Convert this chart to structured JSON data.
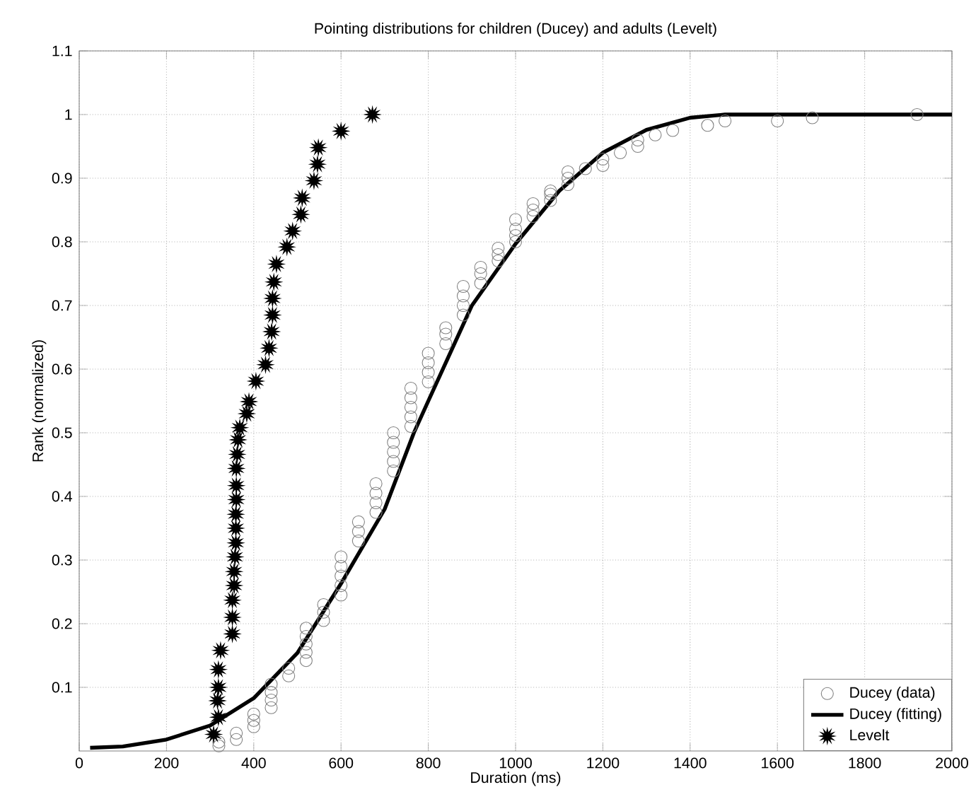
{
  "chart_data": {
    "type": "scatter",
    "title": "Pointing distributions for children (Ducey) and adults (Levelt)",
    "xlabel": "Duration (ms)",
    "ylabel": "Rank (normalized)",
    "xlim": [
      0,
      2000
    ],
    "ylim": [
      0,
      1.1
    ],
    "xticks": [
      0,
      200,
      400,
      600,
      800,
      1000,
      1200,
      1400,
      1600,
      1800,
      2000
    ],
    "yticks": [
      0.1,
      0.2,
      0.3,
      0.4,
      0.5,
      0.6,
      0.7,
      0.8,
      0.9,
      1,
      1.1
    ],
    "grid": true,
    "legend": "bottom right",
    "series": [
      {
        "name": "Ducey (data)",
        "marker": "circle",
        "color": "#808080",
        "x": [
          320,
          320,
          360,
          360,
          400,
          400,
          400,
          440,
          440,
          440,
          440,
          480,
          480,
          520,
          520,
          520,
          520,
          520,
          560,
          560,
          560,
          600,
          600,
          600,
          600,
          600,
          640,
          640,
          640,
          680,
          680,
          680,
          680,
          720,
          720,
          720,
          720,
          720,
          760,
          760,
          760,
          760,
          760,
          800,
          800,
          800,
          800,
          840,
          840,
          840,
          880,
          880,
          880,
          880,
          920,
          920,
          920,
          960,
          960,
          960,
          1000,
          1000,
          1000,
          1000,
          1040,
          1040,
          1040,
          1080,
          1080,
          1080,
          1120,
          1120,
          1120,
          1160,
          1200,
          1200,
          1240,
          1280,
          1280,
          1320,
          1360,
          1440,
          1480,
          1600,
          1680,
          1920
        ],
        "values": [
          0.008,
          0.014,
          0.018,
          0.028,
          0.038,
          0.048,
          0.058,
          0.068,
          0.08,
          0.092,
          0.105,
          0.118,
          0.13,
          0.142,
          0.155,
          0.168,
          0.18,
          0.193,
          0.205,
          0.218,
          0.23,
          0.245,
          0.26,
          0.275,
          0.29,
          0.305,
          0.33,
          0.345,
          0.36,
          0.375,
          0.39,
          0.405,
          0.42,
          0.44,
          0.455,
          0.47,
          0.485,
          0.5,
          0.51,
          0.525,
          0.54,
          0.555,
          0.57,
          0.58,
          0.595,
          0.61,
          0.625,
          0.64,
          0.655,
          0.665,
          0.685,
          0.7,
          0.715,
          0.73,
          0.735,
          0.75,
          0.76,
          0.77,
          0.78,
          0.79,
          0.8,
          0.81,
          0.82,
          0.835,
          0.84,
          0.85,
          0.86,
          0.865,
          0.875,
          0.88,
          0.89,
          0.9,
          0.91,
          0.915,
          0.92,
          0.93,
          0.94,
          0.95,
          0.96,
          0.968,
          0.975,
          0.983,
          0.99,
          0.99,
          0.995,
          1.0
        ]
      },
      {
        "name": "Ducey (fitting)",
        "type": "line",
        "marker": "none",
        "line_style": "solid",
        "color": "#000000",
        "x": [
          25,
          100,
          200,
          300,
          400,
          500,
          600,
          700,
          767,
          800,
          900,
          1000,
          1100,
          1200,
          1300,
          1400,
          1480,
          2000
        ],
        "values": [
          0.005,
          0.007,
          0.018,
          0.04,
          0.083,
          0.154,
          0.263,
          0.38,
          0.5,
          0.55,
          0.7,
          0.797,
          0.88,
          0.94,
          0.976,
          0.995,
          1.0,
          1.0
        ]
      },
      {
        "name": "Levelt",
        "marker": "star",
        "color": "#000000",
        "x": [
          308,
          319,
          317,
          319,
          319,
          324,
          351,
          351,
          351,
          355,
          355,
          357,
          359,
          359,
          359,
          360,
          360,
          360,
          362,
          364,
          368,
          384,
          389,
          405,
          427,
          435,
          441,
          443,
          443,
          446,
          452,
          476,
          489,
          508,
          511,
          538,
          546,
          548,
          600,
          672
        ],
        "values": [
          0.026,
          0.053,
          0.079,
          0.1,
          0.128,
          0.158,
          0.184,
          0.21,
          0.237,
          0.26,
          0.282,
          0.305,
          0.327,
          0.35,
          0.372,
          0.395,
          0.417,
          0.444,
          0.466,
          0.489,
          0.508,
          0.53,
          0.549,
          0.581,
          0.607,
          0.633,
          0.659,
          0.685,
          0.711,
          0.737,
          0.765,
          0.792,
          0.817,
          0.843,
          0.869,
          0.896,
          0.922,
          0.948,
          0.974,
          1.0
        ]
      }
    ]
  }
}
